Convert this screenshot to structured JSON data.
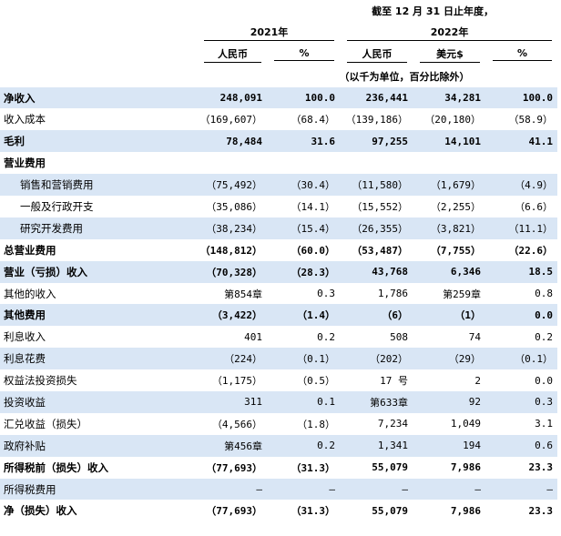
{
  "header": {
    "title": "截至 12 月 31 日止年度，",
    "year_2021": "2021年",
    "year_2022": "2022年",
    "col_rmb_2021": "人民币",
    "col_pct_2021": "%",
    "col_rmb_2022": "人民币",
    "col_usd_2022": "美元$",
    "col_pct_2022": "%",
    "unit_note": "（以千为单位，百分比除外）"
  },
  "rows": [
    {
      "label": "净收入",
      "v": [
        "248,091",
        "100.0",
        "236,441",
        "34,281",
        "100.0"
      ],
      "bold": true,
      "shade": true
    },
    {
      "label": "收入成本",
      "v": [
        "（169,607）",
        "（68.4）",
        "（139,186）",
        "（20,180）",
        "（58.9）"
      ]
    },
    {
      "label": "毛利",
      "v": [
        "78,484",
        "31.6",
        "97,255",
        "14,101",
        "41.1"
      ],
      "bold": true,
      "shade": true
    },
    {
      "label": "营业费用",
      "v": [
        "",
        "",
        "",
        "",
        ""
      ],
      "bold": true
    },
    {
      "label": "销售和营销费用",
      "v": [
        "（75,492）",
        "（30.4）",
        "（11,580）",
        "（1,679）",
        "（4.9）"
      ],
      "shade": true,
      "indent": true
    },
    {
      "label": "一般及行政开支",
      "v": [
        "（35,086）",
        "（14.1）",
        "（15,552）",
        "（2,255）",
        "（6.6）"
      ],
      "indent": true
    },
    {
      "label": "研究开发费用",
      "v": [
        "（38,234）",
        "（15.4）",
        "（26,355）",
        "（3,821）",
        "（11.1）"
      ],
      "shade": true,
      "indent": true
    },
    {
      "label": "总营业费用",
      "v": [
        "（148,812）",
        "（60.0）",
        "（53,487）",
        "（7,755）",
        "（22.6）"
      ],
      "bold": true
    },
    {
      "label": "营业（亏损）收入",
      "v": [
        "（70,328）",
        "（28.3）",
        "43,768",
        "6,346",
        "18.5"
      ],
      "bold": true,
      "shade": true
    },
    {
      "label": "其他的收入",
      "v": [
        "第854章",
        "0.3",
        "1,786",
        "第259章",
        "0.8"
      ]
    },
    {
      "label": "其他费用",
      "v": [
        "（3,422）",
        "（1.4）",
        "（6）",
        "（1）",
        "0.0"
      ],
      "bold": true,
      "shade": true
    },
    {
      "label": "利息收入",
      "v": [
        "401",
        "0.2",
        "508",
        "74",
        "0.2"
      ]
    },
    {
      "label": "利息花费",
      "v": [
        "（224）",
        "（0.1）",
        "（202）",
        "（29）",
        "（0.1）"
      ],
      "shade": true
    },
    {
      "label": "权益法投资损失",
      "v": [
        "（1,175）",
        "（0.5）",
        "17 号",
        "2",
        "0.0"
      ]
    },
    {
      "label": "投资收益",
      "v": [
        "311",
        "0.1",
        "第633章",
        "92",
        "0.3"
      ],
      "shade": true
    },
    {
      "label": "汇兑收益（损失）",
      "v": [
        "（4,566）",
        "（1.8）",
        "7,234",
        "1,049",
        "3.1"
      ]
    },
    {
      "label": "政府补贴",
      "v": [
        "第456章",
        "0.2",
        "1,341",
        "194",
        "0.6"
      ],
      "shade": true
    },
    {
      "label": "所得税前（损失）收入",
      "v": [
        "（77,693）",
        "（31.3）",
        "55,079",
        "7,986",
        "23.3"
      ],
      "bold": true
    },
    {
      "label": "所得税费用",
      "v": [
        "—",
        "—",
        "—",
        "—",
        "—"
      ],
      "shade": true
    },
    {
      "label": "净（损失）收入",
      "v": [
        "（77,693）",
        "（31.3）",
        "55,079",
        "7,986",
        "23.3"
      ],
      "bold": true
    }
  ]
}
